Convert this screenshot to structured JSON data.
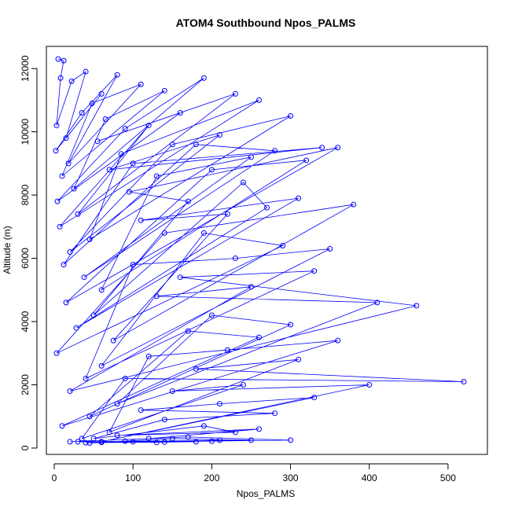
{
  "chart_data": {
    "type": "scatter",
    "title": "ATOM4 Southbound Npos_PALMS",
    "xlabel": "Npos_PALMS",
    "ylabel": "Altitude (m)",
    "xlim": [
      -10,
      550
    ],
    "ylim": [
      -200,
      12700
    ],
    "xticks": [
      0,
      100,
      200,
      300,
      400,
      500
    ],
    "yticks": [
      0,
      2000,
      4000,
      6000,
      8000,
      10000,
      12000
    ],
    "grid": false,
    "legend": "none",
    "series_color": "#0000ff",
    "line_and_points": true,
    "series": [
      {
        "x": [
          5,
          12,
          8,
          3,
          22,
          40,
          15,
          60,
          2,
          35,
          80,
          18,
          110,
          48,
          10,
          140,
          65,
          25,
          190,
          90,
          4,
          160,
          55,
          230,
          30,
          120,
          7,
          260,
          85,
          45,
          300,
          150,
          20,
          210,
          70,
          340,
          100,
          12,
          180,
          280,
          38,
          250,
          130,
          60,
          320,
          200,
          15,
          360,
          95,
          170,
          50,
          240,
          270,
          28,
          310,
          110,
          220,
          75,
          380,
          140,
          3,
          290,
          190,
          60,
          350,
          230,
          100,
          40,
          330,
          160,
          460,
          20,
          250,
          130,
          410,
          80,
          200,
          300,
          45,
          170,
          260,
          10,
          360,
          220,
          120,
          70,
          310,
          180,
          520,
          90,
          35,
          240,
          150,
          400,
          60,
          330,
          210,
          110,
          280,
          140,
          50,
          190,
          230,
          80,
          260,
          120,
          20,
          170,
          300,
          60,
          200,
          100,
          45,
          150,
          250,
          30,
          130,
          90,
          180,
          140,
          40,
          210
        ],
        "y": [
          12300,
          12250,
          11700,
          10200,
          11600,
          11900,
          9800,
          11200,
          9400,
          10600,
          11800,
          9000,
          11500,
          10900,
          8600,
          11300,
          10400,
          8200,
          11700,
          10100,
          7800,
          10600,
          9700,
          11200,
          7400,
          10200,
          7000,
          11000,
          9300,
          6600,
          10500,
          9600,
          6200,
          9900,
          8800,
          9500,
          9000,
          5800,
          9600,
          9400,
          5400,
          9200,
          8600,
          5000,
          9100,
          8800,
          4600,
          9500,
          8100,
          7800,
          4200,
          8400,
          7600,
          3800,
          7900,
          7200,
          7400,
          3400,
          7700,
          6800,
          3000,
          6400,
          6800,
          2600,
          6300,
          6000,
          5800,
          2200,
          5600,
          5400,
          4500,
          1800,
          5100,
          4800,
          4600,
          1400,
          4200,
          3900,
          1000,
          3700,
          3500,
          700,
          3400,
          3100,
          2900,
          500,
          2800,
          2500,
          2100,
          2200,
          300,
          2000,
          1800,
          2000,
          200,
          1600,
          1400,
          1200,
          1100,
          900,
          300,
          700,
          500,
          400,
          600,
          300,
          200,
          350,
          250,
          180,
          220,
          200,
          160,
          300,
          250,
          200,
          180,
          220,
          200,
          190,
          170,
          250
        ]
      }
    ]
  }
}
